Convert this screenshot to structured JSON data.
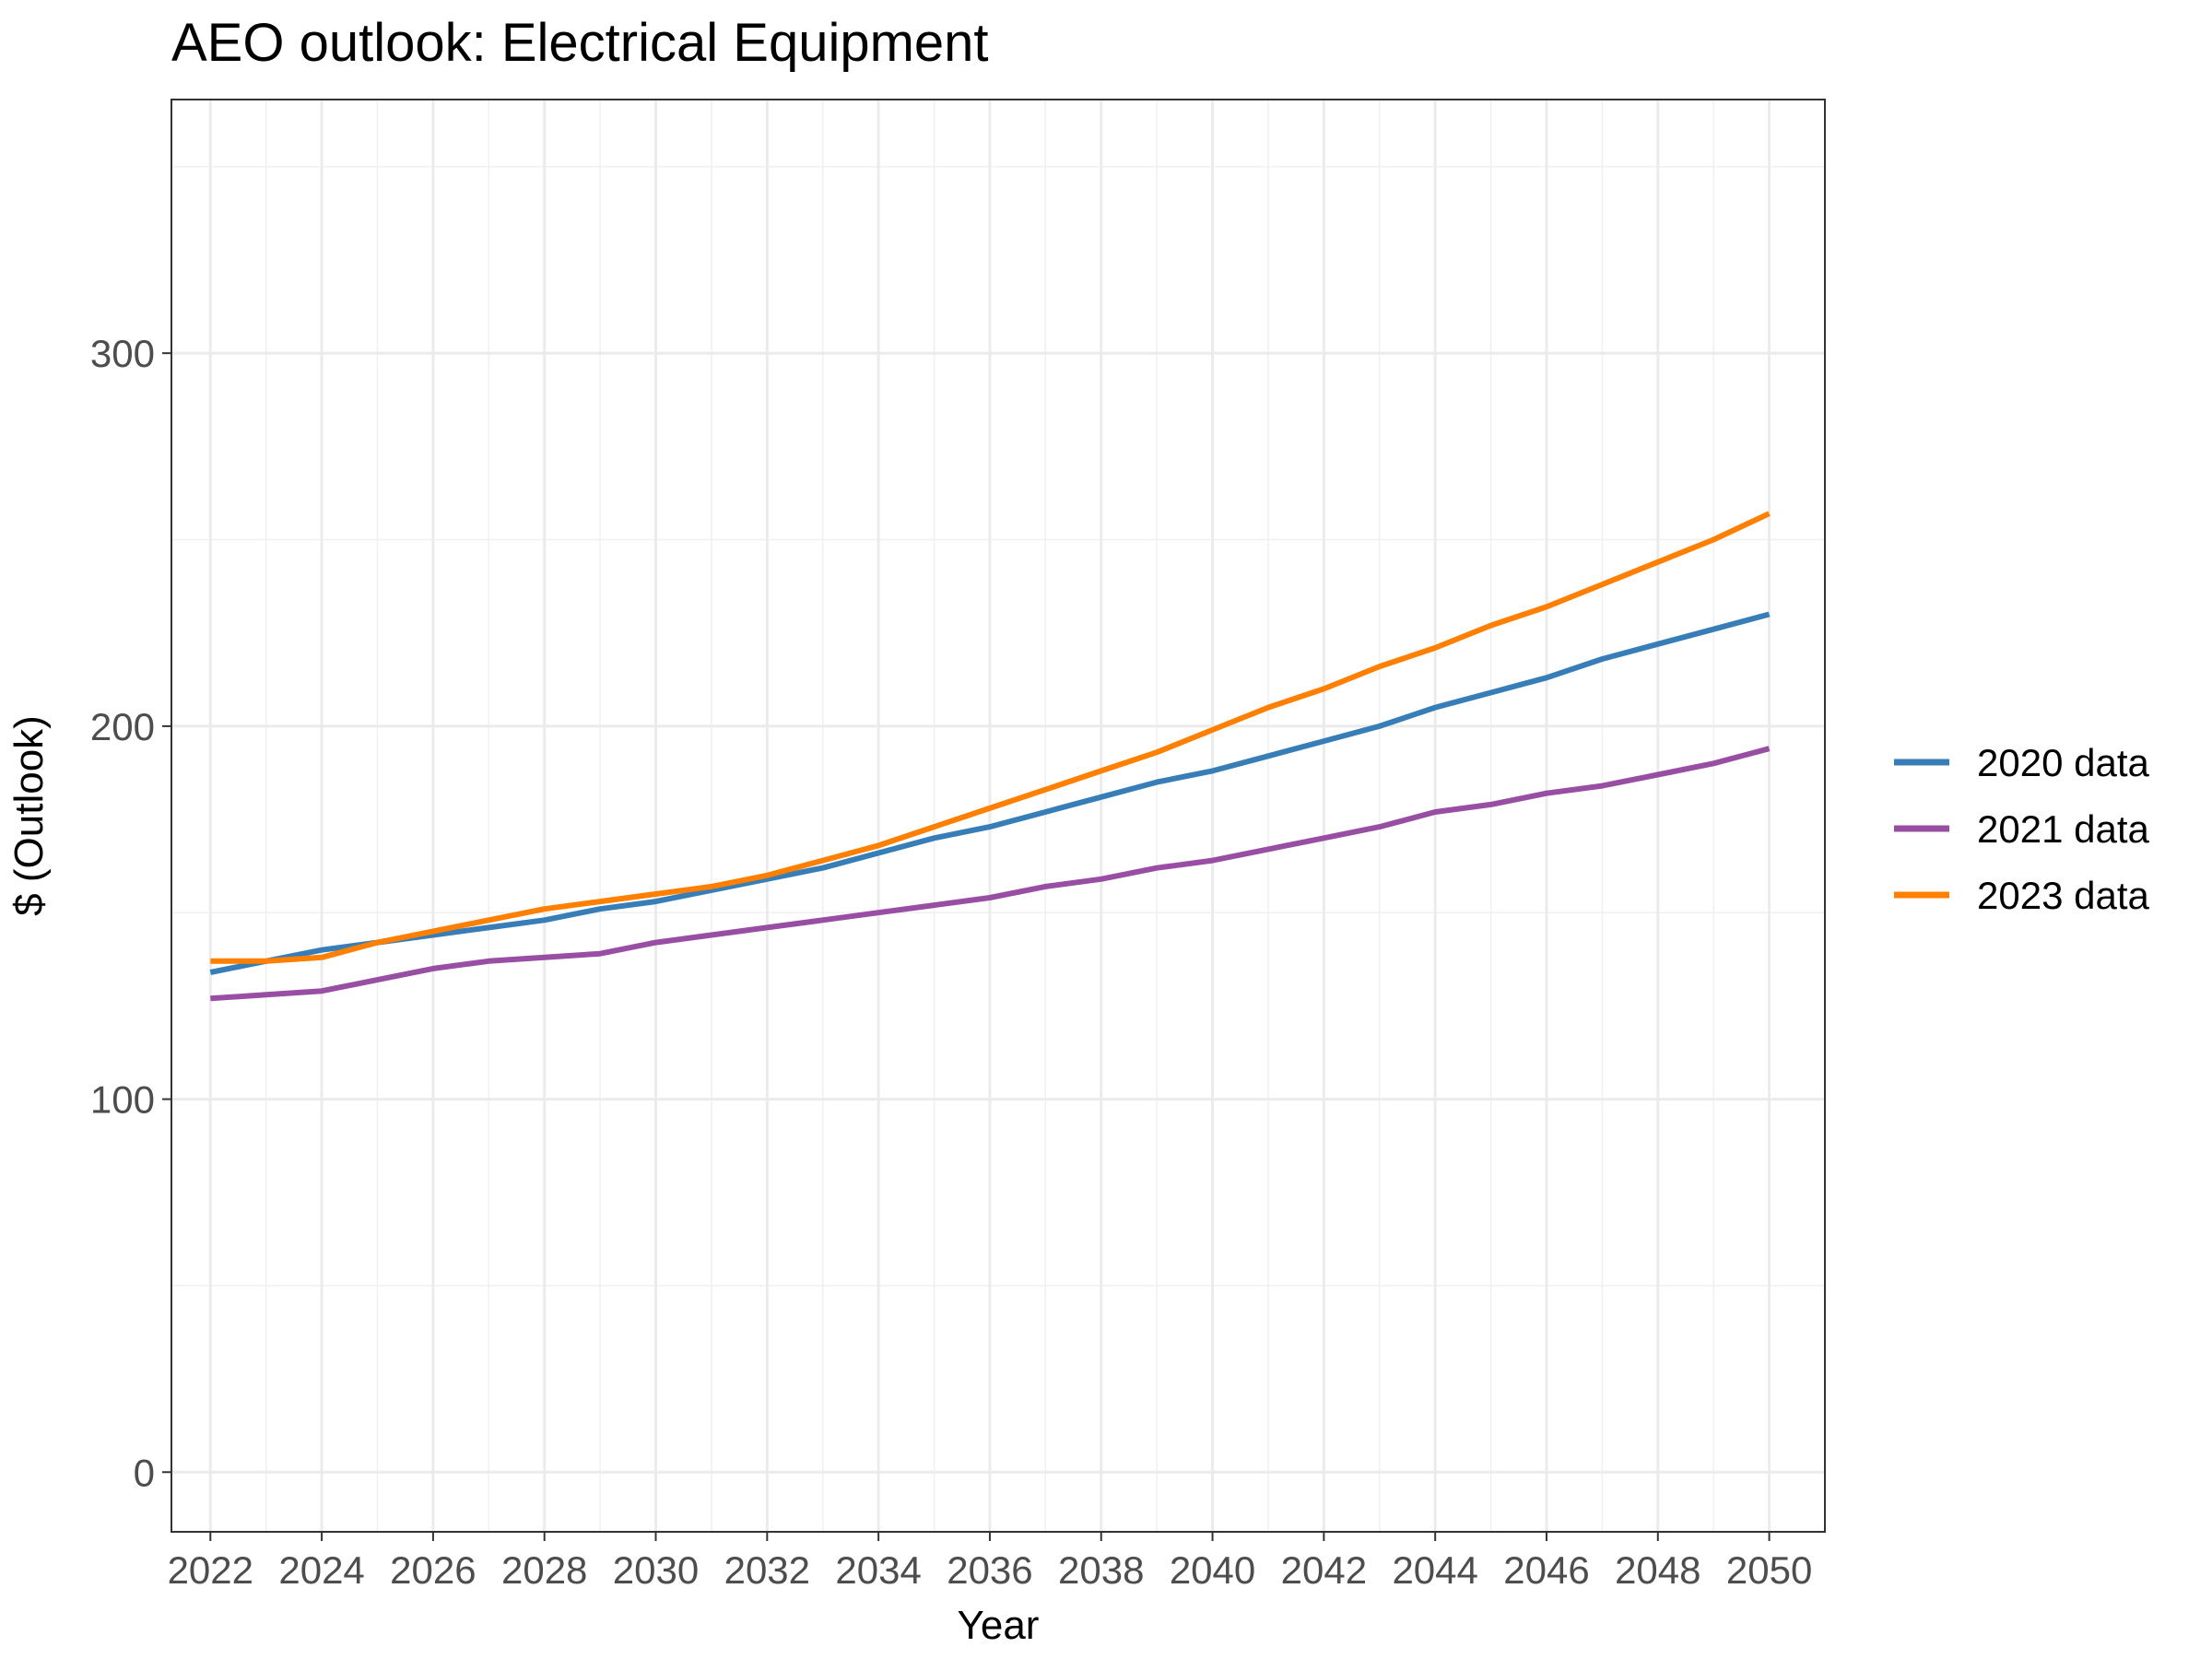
{
  "chart_data": {
    "type": "line",
    "title": "AEO outlook: Electrical Equipment",
    "xlabel": "Year",
    "ylabel": "$ (Outlook)",
    "xlim": [
      2021.3,
      2051.0
    ],
    "ylim": [
      -16,
      368
    ],
    "xticks": [
      "2022",
      "2024",
      "2026",
      "2028",
      "2030",
      "2032",
      "2034",
      "2036",
      "2038",
      "2040",
      "2042",
      "2044",
      "2046",
      "2048",
      "2050"
    ],
    "yticks": [
      "0",
      "100",
      "200",
      "300"
    ],
    "grid": true,
    "legend_position": "right",
    "x": [
      2022,
      2023,
      2024,
      2025,
      2026,
      2027,
      2028,
      2029,
      2030,
      2031,
      2032,
      2033,
      2034,
      2035,
      2036,
      2037,
      2038,
      2039,
      2040,
      2041,
      2042,
      2043,
      2044,
      2045,
      2046,
      2047,
      2048,
      2049,
      2050
    ],
    "series": [
      {
        "name": "2020 data",
        "color": "#377eb8",
        "values": [
          134,
          137,
          140,
          142,
          144,
          146,
          148,
          151,
          153,
          156,
          159,
          162,
          166,
          170,
          173,
          177,
          181,
          185,
          188,
          192,
          196,
          200,
          205,
          209,
          213,
          218,
          222,
          226,
          230
        ]
      },
      {
        "name": "2021 data",
        "color": "#984ea3",
        "values": [
          127,
          128,
          129,
          132,
          135,
          137,
          138,
          139,
          142,
          144,
          146,
          148,
          150,
          152,
          154,
          157,
          159,
          162,
          164,
          167,
          170,
          173,
          177,
          179,
          182,
          184,
          187,
          190,
          194
        ]
      },
      {
        "name": "2023 data",
        "color": "#ff7f00",
        "values": [
          137,
          137,
          138,
          142,
          145,
          148,
          151,
          153,
          155,
          157,
          160,
          164,
          168,
          173,
          178,
          183,
          188,
          193,
          199,
          205,
          210,
          216,
          221,
          227,
          232,
          238,
          244,
          250,
          257
        ]
      }
    ]
  }
}
